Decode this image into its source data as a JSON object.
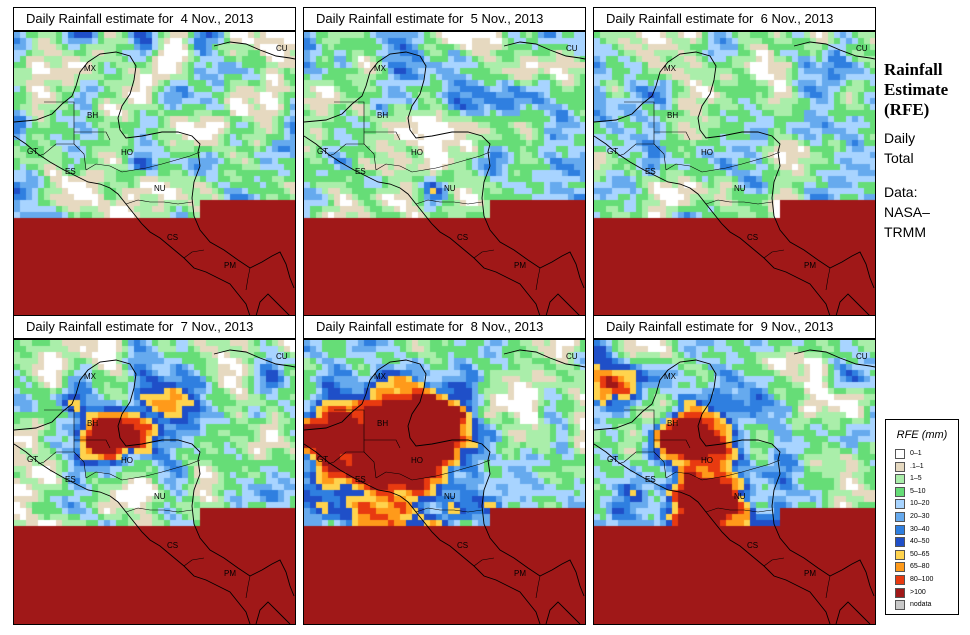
{
  "panels": [
    {
      "title": "Daily Rainfall estimate for  4 Nov., 2013",
      "seed": 4,
      "storm": "none"
    },
    {
      "title": "Daily Rainfall estimate for  5 Nov., 2013",
      "seed": 5,
      "storm": "none"
    },
    {
      "title": "Daily Rainfall estimate for  6 Nov., 2013",
      "seed": 6,
      "storm": "none"
    },
    {
      "title": "Daily Rainfall estimate for  7 Nov., 2013",
      "seed": 7,
      "storm": "belize"
    },
    {
      "title": "Daily Rainfall estimate for  8 Nov., 2013",
      "seed": 8,
      "storm": "honduras"
    },
    {
      "title": "Daily Rainfall estimate for  9 Nov., 2013",
      "seed": 9,
      "storm": "nicaragua"
    }
  ],
  "country_labels": [
    "MX",
    "CU",
    "BH",
    "GT",
    "HO",
    "ES",
    "NU",
    "CS",
    "PM"
  ],
  "sidebar": {
    "title_lines": [
      "Rainfall",
      "Estimate",
      "(RFE)"
    ],
    "text_lines": [
      "Daily",
      "Total",
      "",
      "Data:",
      "NASA–",
      "TRMM"
    ]
  },
  "legend": {
    "title": "RFE (mm)",
    "items": [
      {
        "label": "0–1",
        "color": "#ffffff"
      },
      {
        "label": ".1–1",
        "color": "#e6d9c0"
      },
      {
        "label": "1–5",
        "color": "#aaeeaa"
      },
      {
        "label": "5–10",
        "color": "#66dd77"
      },
      {
        "label": "10–20",
        "color": "#a8d4ff"
      },
      {
        "label": "20–30",
        "color": "#66aaee"
      },
      {
        "label": "30–40",
        "color": "#2f7fe0"
      },
      {
        "label": "40–50",
        "color": "#1f4fc8"
      },
      {
        "label": "50–65",
        "color": "#ffd34d"
      },
      {
        "label": "65–80",
        "color": "#ff9a1a"
      },
      {
        "label": "80–100",
        "color": "#e83a10"
      },
      {
        "label": ">100",
        "color": "#a01818"
      },
      {
        "label": "nodata",
        "color": "#c8c8c8"
      }
    ]
  }
}
